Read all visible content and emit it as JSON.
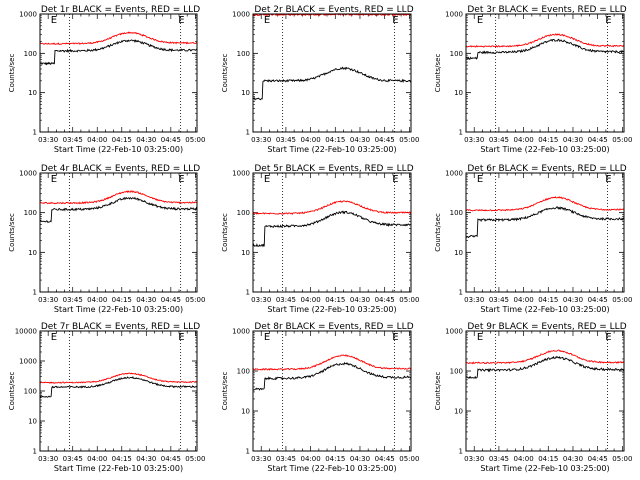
{
  "colors": {
    "events": "#000000",
    "lld": "#ff0000",
    "axis": "#000000",
    "marker": "#000000"
  },
  "common": {
    "ylabel": "Counts/sec",
    "xlabel": "Start Time (22-Feb-10 03:25:00)",
    "xticks": [
      "03:30",
      "03:45",
      "04:00",
      "04:15",
      "04:30",
      "04:45",
      "05:00"
    ],
    "xtick_minutes": [
      30,
      45,
      60,
      75,
      90,
      105,
      120
    ],
    "xlim_minutes": [
      25,
      121
    ],
    "marker_minutes": [
      43,
      111
    ],
    "annotation": "E",
    "annotation_minutes": [
      34,
      112
    ],
    "yscale": "log"
  },
  "chart_data": [
    {
      "type": "line",
      "title": "Det 1r  BLACK = Events, RED = LLD",
      "ylim": [
        1,
        1000
      ],
      "yticks": [
        "1",
        "10",
        "100",
        "1000"
      ],
      "step_minute": 34,
      "series": [
        {
          "name": "Events",
          "pre": 55,
          "base": 115,
          "peak": 210,
          "end": 120
        },
        {
          "name": "LLD",
          "base": 175,
          "peak": 330,
          "end": 185
        }
      ]
    },
    {
      "type": "line",
      "title": "Det 2r  BLACK = Events, RED = LLD",
      "ylim": [
        1,
        1000
      ],
      "yticks": [
        "1",
        "10",
        "100",
        "1000"
      ],
      "step_minute": 31,
      "series": [
        {
          "name": "Events",
          "pre": 7,
          "base": 20,
          "peak": 42,
          "end": 20
        },
        {
          "name": "LLD",
          "base": 960,
          "peak": 980,
          "end": 960
        }
      ]
    },
    {
      "type": "line",
      "title": "Det 3r  BLACK = Events, RED = LLD",
      "ylim": [
        1,
        1000
      ],
      "yticks": [
        "1",
        "10",
        "100",
        "1000"
      ],
      "step_minute": 32,
      "series": [
        {
          "name": "Events",
          "pre": 75,
          "base": 105,
          "peak": 215,
          "end": 110
        },
        {
          "name": "LLD",
          "base": 150,
          "peak": 300,
          "end": 155
        }
      ]
    },
    {
      "type": "line",
      "title": "Det 4r  BLACK = Events, RED = LLD",
      "ylim": [
        1,
        1000
      ],
      "yticks": [
        "1",
        "10",
        "100",
        "1000"
      ],
      "step_minute": 32,
      "series": [
        {
          "name": "Events",
          "pre": 60,
          "base": 120,
          "peak": 230,
          "end": 125
        },
        {
          "name": "LLD",
          "base": 175,
          "peak": 340,
          "end": 180
        }
      ]
    },
    {
      "type": "line",
      "title": "Det 5r  BLACK = Events, RED = LLD",
      "ylim": [
        1,
        1000
      ],
      "yticks": [
        "1",
        "10",
        "100",
        "1000"
      ],
      "step_minute": 32,
      "series": [
        {
          "name": "Events",
          "pre": 15,
          "base": 45,
          "peak": 100,
          "end": 50
        },
        {
          "name": "LLD",
          "base": 95,
          "peak": 190,
          "end": 100
        }
      ]
    },
    {
      "type": "line",
      "title": "Det 6r  BLACK = Events, RED = LLD",
      "ylim": [
        1,
        1000
      ],
      "yticks": [
        "1",
        "10",
        "100",
        "1000"
      ],
      "step_minute": 32,
      "series": [
        {
          "name": "Events",
          "pre": 25,
          "base": 65,
          "peak": 130,
          "end": 70
        },
        {
          "name": "LLD",
          "base": 115,
          "peak": 240,
          "end": 120
        }
      ]
    },
    {
      "type": "line",
      "title": "Det 7r  BLACK = Events, RED = LLD",
      "ylim": [
        1,
        10000
      ],
      "yticks": [
        "1",
        "10",
        "100",
        "1000",
        "10000"
      ],
      "step_minute": 32,
      "series": [
        {
          "name": "Events",
          "pre": 65,
          "base": 135,
          "peak": 280,
          "end": 140
        },
        {
          "name": "LLD",
          "base": 190,
          "peak": 380,
          "end": 200
        }
      ]
    },
    {
      "type": "line",
      "title": "Det 8r  BLACK = Events, RED = LLD",
      "ylim": [
        1,
        1000
      ],
      "yticks": [
        "1",
        "10",
        "100",
        "1000"
      ],
      "step_minute": 32,
      "series": [
        {
          "name": "Events",
          "pre": 35,
          "base": 65,
          "peak": 150,
          "end": 70
        },
        {
          "name": "LLD",
          "base": 110,
          "peak": 240,
          "end": 115
        }
      ]
    },
    {
      "type": "line",
      "title": "Det 9r  BLACK = Events, RED = LLD",
      "ylim": [
        1,
        1000
      ],
      "yticks": [
        "1",
        "10",
        "100",
        "1000"
      ],
      "step_minute": 32,
      "series": [
        {
          "name": "Events",
          "pre": 70,
          "base": 105,
          "peak": 215,
          "end": 110
        },
        {
          "name": "LLD",
          "base": 160,
          "peak": 320,
          "end": 165
        }
      ]
    }
  ]
}
